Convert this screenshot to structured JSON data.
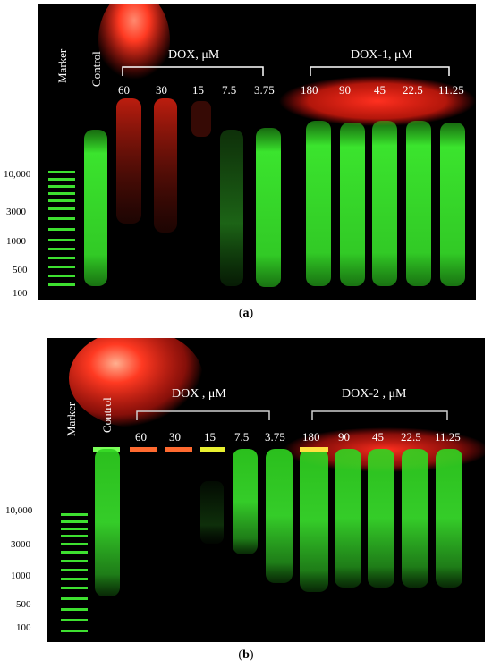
{
  "panels": [
    {
      "id": "a",
      "caption_letter": "a",
      "marker_label": "Marker",
      "control_label": "Control",
      "group1": {
        "label": "DOX, μM",
        "concentrations": [
          "60",
          "30",
          "15",
          "7.5",
          "3.75"
        ]
      },
      "group2": {
        "label": "DOX-1, μM",
        "concentrations": [
          "180",
          "90",
          "45",
          "22.5",
          "11.25"
        ]
      },
      "marker_sizes": [
        "10,000",
        "3000",
        "1000",
        "500",
        "100"
      ]
    },
    {
      "id": "b",
      "caption_letter": "b",
      "marker_label": "Marker",
      "control_label": "Control",
      "group1": {
        "label": "DOX , μM",
        "concentrations": [
          "60",
          "30",
          "15",
          "7.5",
          "3.75"
        ]
      },
      "group2": {
        "label": "DOX-2 , μM",
        "concentrations": [
          "180",
          "90",
          "45",
          "22.5",
          "11.25"
        ]
      },
      "marker_sizes": [
        "10,000",
        "3000",
        "1000",
        "500",
        "100"
      ]
    }
  ],
  "colors": {
    "gel_background": "#000000",
    "dna_green": "#36e62a",
    "dox_red": "#ff2a1a",
    "label_white": "#ffffff"
  }
}
